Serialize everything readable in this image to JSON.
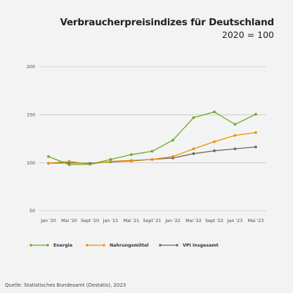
{
  "header": {
    "title": "Verbraucherpreisindizes für Deutschland",
    "subtitle": "2020 = 100"
  },
  "source": "Quelle: Statistisches Bundesamt (Destatis), 2023",
  "chart_data": {
    "type": "line",
    "title": "Verbraucherpreisindizes für Deutschland",
    "subtitle": "2020 = 100",
    "xlabel": "",
    "ylabel": "",
    "x": [
      "Jan '20",
      "Mai '20",
      "Sept '20",
      "Jan '21",
      "Mai '21",
      "Sept '21",
      "Jan '22",
      "Mai '22",
      "Sept '22",
      "Jan '23",
      "Mai '23"
    ],
    "ylim": [
      50,
      200
    ],
    "yticks": [
      50,
      100,
      150,
      200
    ],
    "grid": true,
    "legend": "bottom",
    "series": [
      {
        "name": "Energie",
        "color": "#6aaa1e",
        "values": [
          106.5,
          98,
          98.5,
          103.5,
          108.5,
          112,
          123.5,
          147,
          153,
          140,
          150.5
        ]
      },
      {
        "name": "Nahrungsmittel",
        "color": "#ef8e00",
        "values": [
          99.5,
          101.5,
          98.5,
          101.5,
          102.5,
          103.5,
          106.5,
          114.5,
          122,
          128.5,
          131.5
        ]
      },
      {
        "name": "VPI Insgesamt",
        "color": "#666666",
        "values": [
          99.5,
          100,
          99.5,
          101,
          102,
          103.5,
          105,
          109.5,
          112.5,
          114.5,
          116.5
        ]
      }
    ]
  }
}
